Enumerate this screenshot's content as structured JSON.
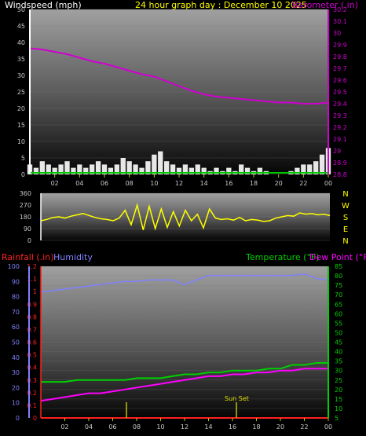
{
  "colors": {
    "wind": "#ffffff",
    "gust_base": "#00c800",
    "barometer": "#d000d0",
    "direction": "#ffff00",
    "rainfall": "#ff2020",
    "humidity": "#8080ff",
    "temperature": "#00d000",
    "dewpoint": "#ff00ff",
    "tick": "#c0c000",
    "axis_text": "#c8c8c8"
  },
  "header": {
    "windspeed_label": "Windspeed (mph)",
    "title": "24 hour graph day : December 10 2025",
    "barometer_label": "Barometer (.in)"
  },
  "bottom_header": {
    "rainfall_label": "Rainfall (.in)",
    "humidity_label": "Humidity",
    "temperature_label": "Temperature (°F)",
    "dewpoint_label": "Dew Point (°F)"
  },
  "hour_ticks": [
    "02",
    "04",
    "06",
    "08",
    "10",
    "12",
    "14",
    "16",
    "18",
    "20",
    "22",
    "00"
  ],
  "sun_label": "Sun Set",
  "chart_data": [
    {
      "type": "area",
      "title": "24 hour graph day : December 10 2025",
      "x_unit": "hours",
      "xlim": [
        0,
        24
      ],
      "y_left": {
        "label": "Windspeed (mph)",
        "ticks": [
          0,
          5,
          10,
          15,
          20,
          25,
          30,
          35,
          40,
          45,
          50
        ],
        "ylim": [
          0,
          50
        ]
      },
      "y_right": {
        "label": "Barometer (.in)",
        "ticks": [
          "28.8",
          "28.9",
          "29",
          "29.1",
          "29.2",
          "29.3",
          "29.4",
          "29.5",
          "29.6",
          "29.7",
          "29.8",
          "29.9",
          "30",
          "30.1",
          "30.2"
        ],
        "ylim": [
          28.8,
          30.2
        ]
      },
      "series": [
        {
          "name": "Windspeed (mph)",
          "axis": "left",
          "x": [
            0,
            0.5,
            1,
            1.5,
            2,
            2.5,
            3,
            3.5,
            4,
            4.5,
            5,
            5.5,
            6,
            6.5,
            7,
            7.5,
            8,
            8.5,
            9,
            9.5,
            10,
            10.5,
            11,
            11.5,
            12,
            12.5,
            13,
            13.5,
            14,
            14.5,
            15,
            15.5,
            16,
            16.5,
            17,
            17.5,
            18,
            18.5,
            19,
            19.5,
            20,
            20.5,
            21,
            21.5,
            22,
            22.5,
            23,
            23.5,
            24
          ],
          "values": [
            3,
            2,
            4,
            3,
            2,
            3,
            4,
            2,
            3,
            2,
            3,
            4,
            3,
            2,
            3,
            5,
            4,
            3,
            2,
            4,
            6,
            7,
            4,
            3,
            2,
            3,
            2,
            3,
            2,
            1,
            2,
            1,
            2,
            1,
            3,
            2,
            1,
            2,
            1,
            0,
            0,
            0,
            1,
            2,
            3,
            3,
            4,
            6,
            8
          ]
        },
        {
          "name": "Barometer (.in)",
          "axis": "right",
          "x": [
            0,
            1,
            2,
            3,
            4,
            5,
            6,
            7,
            8,
            9,
            10,
            11,
            12,
            13,
            14,
            15,
            16,
            17,
            18,
            19,
            20,
            21,
            22,
            23,
            24
          ],
          "values": [
            29.87,
            29.86,
            29.84,
            29.82,
            29.79,
            29.76,
            29.74,
            29.71,
            29.68,
            29.65,
            29.63,
            29.59,
            29.55,
            29.51,
            29.48,
            29.46,
            29.45,
            29.44,
            29.43,
            29.42,
            29.41,
            29.41,
            29.4,
            29.4,
            29.41
          ]
        }
      ]
    },
    {
      "type": "line",
      "x_unit": "hours",
      "xlim": [
        0,
        24
      ],
      "y_left": {
        "ticks": [
          0,
          90,
          180,
          270,
          360
        ],
        "ylim": [
          0,
          360
        ]
      },
      "y_right_labels": [
        "N",
        "W",
        "S",
        "E",
        "N"
      ],
      "series": [
        {
          "name": "Wind direction",
          "x": [
            0,
            0.5,
            1,
            1.5,
            2,
            2.5,
            3,
            3.5,
            4,
            4.5,
            5,
            5.5,
            6,
            6.5,
            7,
            7.5,
            8,
            8.5,
            9,
            9.5,
            10,
            10.5,
            11,
            11.5,
            12,
            12.5,
            13,
            13.5,
            14,
            14.5,
            15,
            15.5,
            16,
            16.5,
            17,
            17.5,
            18,
            18.5,
            19,
            19.5,
            20,
            20.5,
            21,
            21.5,
            22,
            22.5,
            23,
            23.5,
            24
          ],
          "values": [
            150,
            160,
            175,
            180,
            170,
            185,
            195,
            205,
            190,
            175,
            165,
            160,
            150,
            170,
            230,
            120,
            270,
            80,
            260,
            90,
            240,
            100,
            220,
            110,
            230,
            150,
            200,
            95,
            240,
            170,
            160,
            165,
            155,
            175,
            150,
            160,
            155,
            145,
            150,
            170,
            180,
            190,
            185,
            210,
            200,
            205,
            195,
            200,
            190
          ]
        }
      ]
    },
    {
      "type": "line",
      "x_unit": "hours",
      "xlim": [
        0,
        24
      ],
      "y_rain": {
        "label": "Rainfall (.in)",
        "ticks": [
          "0",
          "0.1",
          "0.2",
          "0.3",
          "0.4",
          "0.5",
          "0.6",
          "0.7",
          "0.8",
          "0.9",
          "1",
          "1.1",
          "1.2"
        ],
        "ylim": [
          0,
          1.2
        ]
      },
      "y_humidity": {
        "label": "Humidity",
        "ticks": [
          0,
          10,
          20,
          30,
          40,
          50,
          60,
          70,
          80,
          90,
          100
        ],
        "ylim": [
          0,
          100
        ]
      },
      "y_temp": {
        "label": "Temperature (°F)",
        "ticks": [
          5,
          10,
          15,
          20,
          25,
          30,
          35,
          40,
          45,
          50,
          55,
          60,
          65,
          70,
          75,
          80,
          85
        ],
        "ylim": [
          5,
          85
        ]
      },
      "series": [
        {
          "name": "Humidity",
          "axis": "humidity",
          "x": [
            0,
            1,
            2,
            3,
            4,
            5,
            6,
            7,
            8,
            9,
            10,
            11,
            12,
            13,
            14,
            15,
            16,
            17,
            18,
            19,
            20,
            21,
            22,
            23,
            24
          ],
          "values": [
            83,
            84,
            85,
            86,
            87,
            88,
            89,
            90,
            90,
            91,
            91,
            91,
            88,
            91,
            94,
            94,
            94,
            94,
            94,
            94,
            94,
            94,
            95,
            92,
            91
          ]
        },
        {
          "name": "Temperature (°F)",
          "axis": "temp",
          "x": [
            0,
            1,
            2,
            3,
            4,
            5,
            6,
            7,
            8,
            9,
            10,
            11,
            12,
            13,
            14,
            15,
            16,
            17,
            18,
            19,
            20,
            21,
            22,
            23,
            24
          ],
          "values": [
            24,
            24,
            24,
            25,
            25,
            25,
            25,
            25,
            26,
            26,
            26,
            27,
            28,
            28,
            29,
            29,
            30,
            30,
            30,
            31,
            31,
            33,
            33,
            34,
            34
          ]
        },
        {
          "name": "Dew Point (°F)",
          "axis": "temp",
          "x": [
            0,
            1,
            2,
            3,
            4,
            5,
            6,
            7,
            8,
            9,
            10,
            11,
            12,
            13,
            14,
            15,
            16,
            17,
            18,
            19,
            20,
            21,
            22,
            23,
            24
          ],
          "values": [
            14,
            15,
            16,
            17,
            18,
            18,
            19,
            20,
            21,
            22,
            23,
            24,
            25,
            26,
            27,
            27,
            28,
            28,
            29,
            29,
            30,
            30,
            31,
            31,
            31
          ]
        },
        {
          "name": "Rainfall (.in)",
          "axis": "rain",
          "x": [
            0,
            24
          ],
          "values": [
            0,
            0
          ]
        }
      ]
    }
  ]
}
